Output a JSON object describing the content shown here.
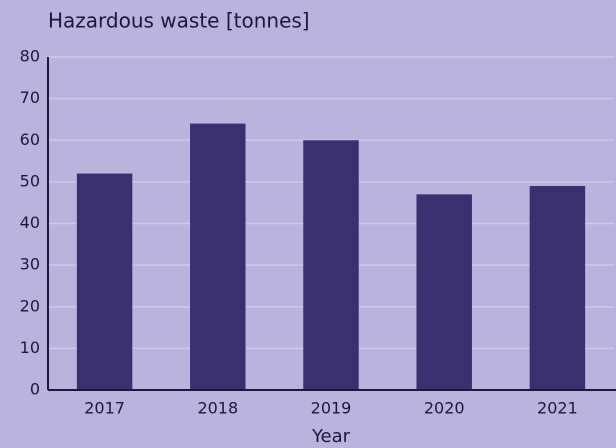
{
  "chart_data": {
    "type": "bar",
    "title": "Hazardous waste [tonnes]",
    "x_label": "Year",
    "categories": [
      "2017",
      "2018",
      "2019",
      "2020",
      "2021"
    ],
    "values": [
      52,
      64,
      60,
      47,
      49
    ],
    "color": "#3a2f6f",
    "ylim": [
      0,
      80
    ],
    "yticks": [
      0,
      10,
      20,
      30,
      40,
      50,
      60,
      70,
      80
    ],
    "grid": true
  }
}
